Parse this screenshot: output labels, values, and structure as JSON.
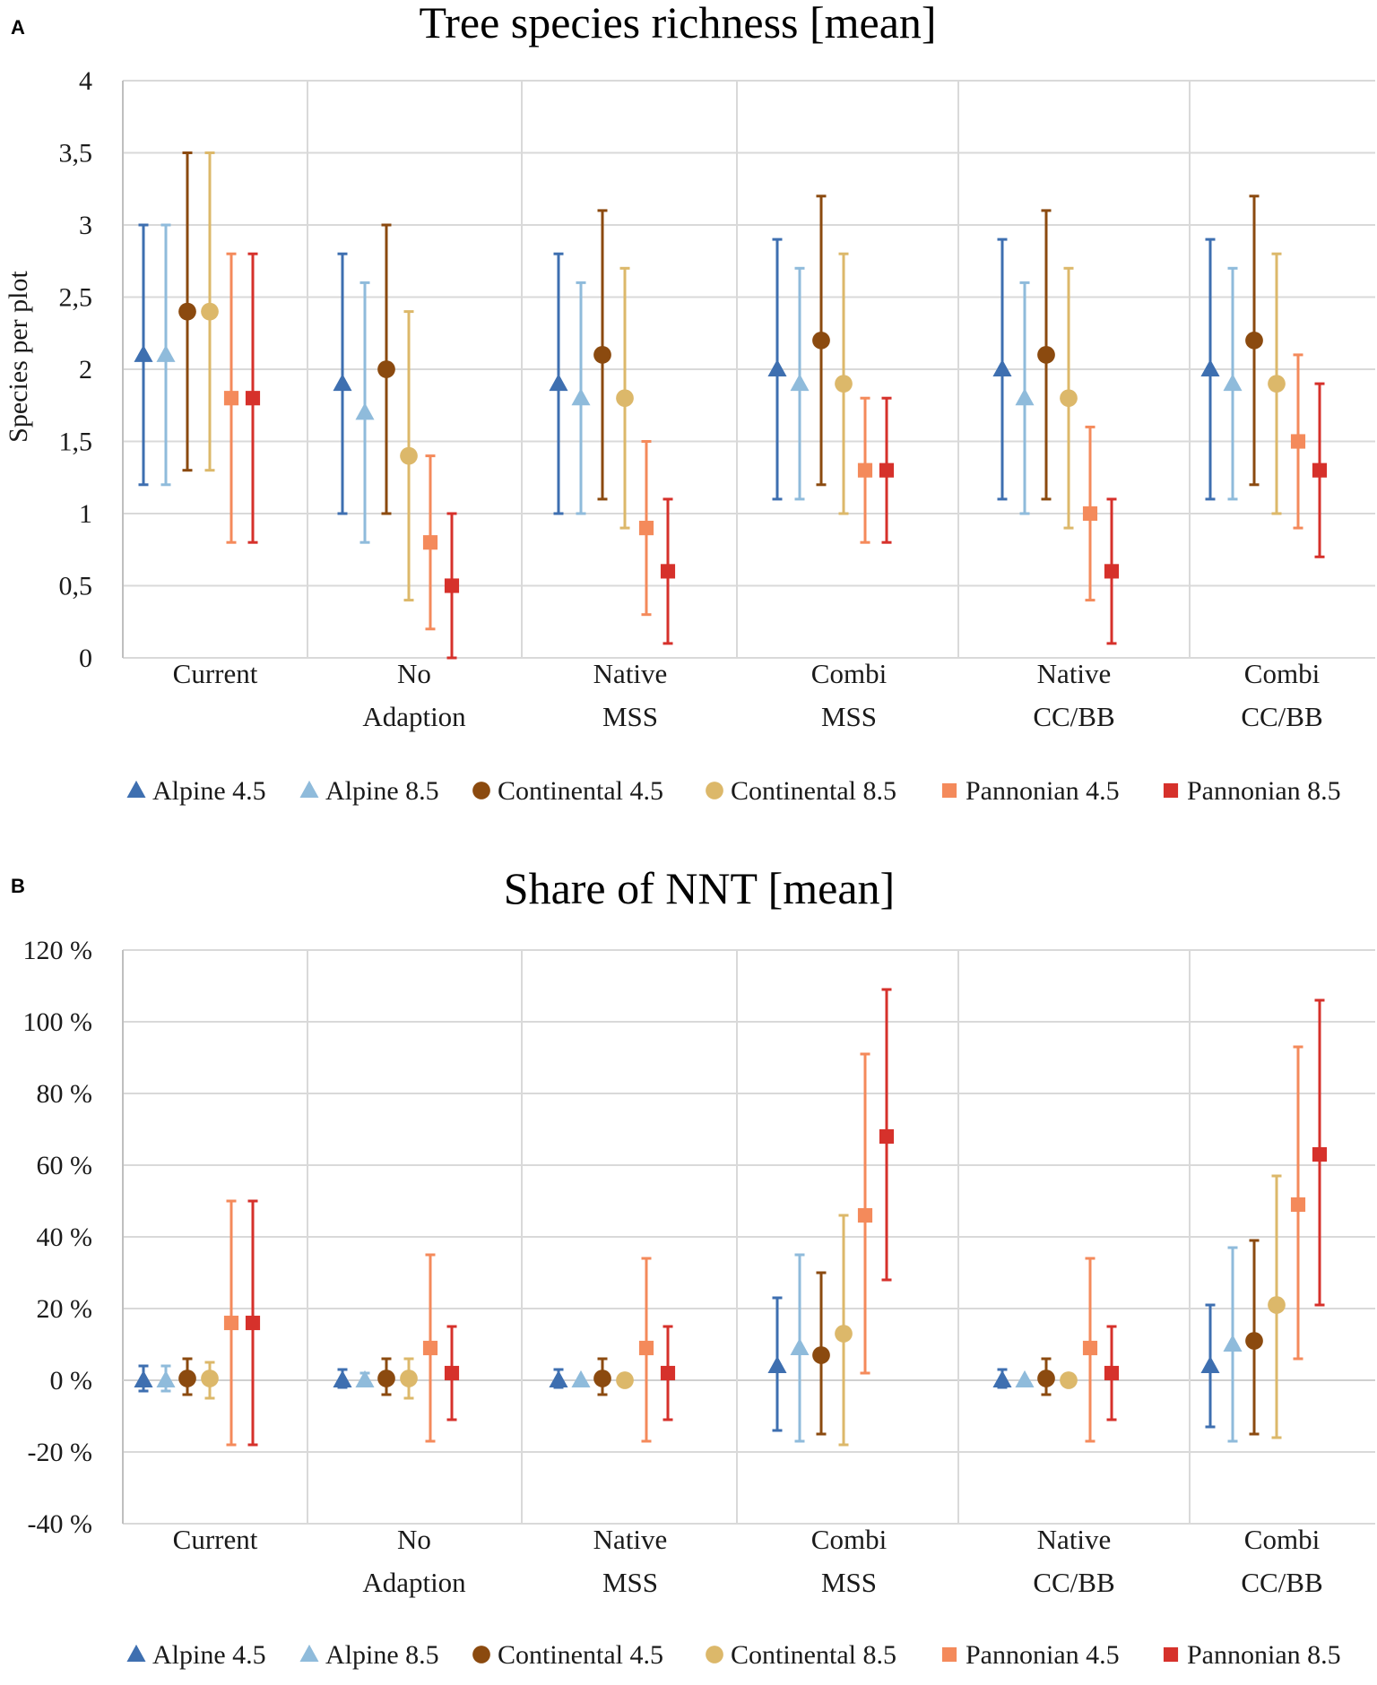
{
  "colors": {
    "Alpine 4.5": "#3e6fb0",
    "Alpine 8.5": "#8fbbdb",
    "Continental 4.5": "#8b4a0f",
    "Continental 8.5": "#dcb86a",
    "Pannonian 4.5": "#f48a5b",
    "Pannonian 8.5": "#d6312b"
  },
  "series_markers": {
    "Alpine 4.5": "triangle",
    "Alpine 8.5": "triangle",
    "Continental 4.5": "circle",
    "Continental 8.5": "circle",
    "Pannonian 4.5": "square",
    "Pannonian 8.5": "square"
  },
  "chart_data": [
    {
      "panel": "A",
      "type": "scatter",
      "title": "Tree species richness [mean]",
      "ylabel": "Species per plot",
      "xlabel": "",
      "ylim": [
        0,
        4
      ],
      "yticks": [
        0,
        0.5,
        1,
        1.5,
        2,
        2.5,
        3,
        3.5,
        4
      ],
      "ytick_labels": [
        "0",
        "0,5",
        "1",
        "1,5",
        "2",
        "2,5",
        "3",
        "3,5",
        "4"
      ],
      "categories": [
        [
          "Current"
        ],
        [
          "No",
          "Adaption"
        ],
        [
          "Native",
          "MSS"
        ],
        [
          "Combi",
          "MSS"
        ],
        [
          "Native",
          "CC/BB"
        ],
        [
          "Combi",
          "CC/BB"
        ]
      ],
      "grid": true,
      "legend_position": "bottom",
      "series": [
        {
          "name": "Alpine 4.5",
          "values": [
            2.1,
            1.9,
            1.9,
            2.0,
            2.0,
            2.0
          ],
          "low": [
            1.2,
            1.0,
            1.0,
            1.1,
            1.1,
            1.1
          ],
          "high": [
            3.0,
            2.8,
            2.8,
            2.9,
            2.9,
            2.9
          ]
        },
        {
          "name": "Alpine 8.5",
          "values": [
            2.1,
            1.7,
            1.8,
            1.9,
            1.8,
            1.9
          ],
          "low": [
            1.2,
            0.8,
            1.0,
            1.1,
            1.0,
            1.1
          ],
          "high": [
            3.0,
            2.6,
            2.6,
            2.7,
            2.6,
            2.7
          ]
        },
        {
          "name": "Continental 4.5",
          "values": [
            2.4,
            2.0,
            2.1,
            2.2,
            2.1,
            2.2
          ],
          "low": [
            1.3,
            1.0,
            1.1,
            1.2,
            1.1,
            1.2
          ],
          "high": [
            3.5,
            3.0,
            3.1,
            3.2,
            3.1,
            3.2
          ]
        },
        {
          "name": "Continental 8.5",
          "values": [
            2.4,
            1.4,
            1.8,
            1.9,
            1.8,
            1.9
          ],
          "low": [
            1.3,
            0.4,
            0.9,
            1.0,
            0.9,
            1.0
          ],
          "high": [
            3.5,
            2.4,
            2.7,
            2.8,
            2.7,
            2.8
          ]
        },
        {
          "name": "Pannonian 4.5",
          "values": [
            1.8,
            0.8,
            0.9,
            1.3,
            1.0,
            1.5
          ],
          "low": [
            0.8,
            0.2,
            0.3,
            0.8,
            0.4,
            0.9
          ],
          "high": [
            2.8,
            1.4,
            1.5,
            1.8,
            1.6,
            2.1
          ]
        },
        {
          "name": "Pannonian 8.5",
          "values": [
            1.8,
            0.5,
            0.6,
            1.3,
            0.6,
            1.3
          ],
          "low": [
            0.8,
            0.0,
            0.1,
            0.8,
            0.1,
            0.7
          ],
          "high": [
            2.8,
            1.0,
            1.1,
            1.8,
            1.1,
            1.9
          ]
        }
      ]
    },
    {
      "panel": "B",
      "type": "scatter",
      "title": "Share of NNT [mean]",
      "ylabel": "",
      "xlabel": "",
      "ylim": [
        -40,
        120
      ],
      "yticks": [
        -40,
        -20,
        0,
        20,
        40,
        60,
        80,
        100,
        120
      ],
      "ytick_labels": [
        "-40 %",
        "-20 %",
        "0 %",
        "20 %",
        "40 %",
        "60 %",
        "80 %",
        "100 %",
        "120 %"
      ],
      "categories": [
        [
          "Current"
        ],
        [
          "No",
          "Adaption"
        ],
        [
          "Native",
          "MSS"
        ],
        [
          "Combi",
          "MSS"
        ],
        [
          "Native",
          "CC/BB"
        ],
        [
          "Combi",
          "CC/BB"
        ]
      ],
      "grid": true,
      "legend_position": "bottom",
      "series": [
        {
          "name": "Alpine 4.5",
          "values": [
            0,
            0,
            0,
            4,
            0,
            4
          ],
          "low": [
            -3,
            -2,
            -2,
            -14,
            -2,
            -13
          ],
          "high": [
            4,
            3,
            3,
            23,
            3,
            21
          ]
        },
        {
          "name": "Alpine 8.5",
          "values": [
            0,
            0,
            0,
            9,
            0,
            10
          ],
          "low": [
            -3,
            -1,
            null,
            -17,
            null,
            -17
          ],
          "high": [
            4,
            2,
            null,
            35,
            null,
            37
          ]
        },
        {
          "name": "Continental 4.5",
          "values": [
            0.5,
            0.5,
            0.5,
            7,
            0.5,
            11
          ],
          "low": [
            -4,
            -4,
            -4,
            -15,
            -4,
            -15
          ],
          "high": [
            6,
            6,
            6,
            30,
            6,
            39
          ]
        },
        {
          "name": "Continental 8.5",
          "values": [
            0.5,
            0.5,
            0,
            13,
            0,
            21
          ],
          "low": [
            -5,
            -5,
            null,
            -18,
            null,
            -16
          ],
          "high": [
            5,
            6,
            null,
            46,
            null,
            57
          ]
        },
        {
          "name": "Pannonian 4.5",
          "values": [
            16,
            9,
            9,
            46,
            9,
            49
          ],
          "low": [
            -18,
            -17,
            -17,
            2,
            -17,
            6
          ],
          "high": [
            50,
            35,
            34,
            91,
            34,
            93
          ]
        },
        {
          "name": "Pannonian 8.5",
          "values": [
            16,
            2,
            2,
            68,
            2,
            63
          ],
          "low": [
            -18,
            -11,
            -11,
            28,
            -11,
            21
          ],
          "high": [
            50,
            15,
            15,
            109,
            15,
            106
          ]
        }
      ]
    }
  ],
  "panels": [
    {
      "letter": "A",
      "title": "Tree species richness [mean]",
      "ylabel": "Species per plot"
    },
    {
      "letter": "B",
      "title": "Share of NNT [mean]",
      "ylabel": ""
    }
  ],
  "legend": [
    "Alpine 4.5",
    "Alpine 8.5",
    "Continental 4.5",
    "Continental 8.5",
    "Pannonian 4.5",
    "Pannonian 8.5"
  ]
}
